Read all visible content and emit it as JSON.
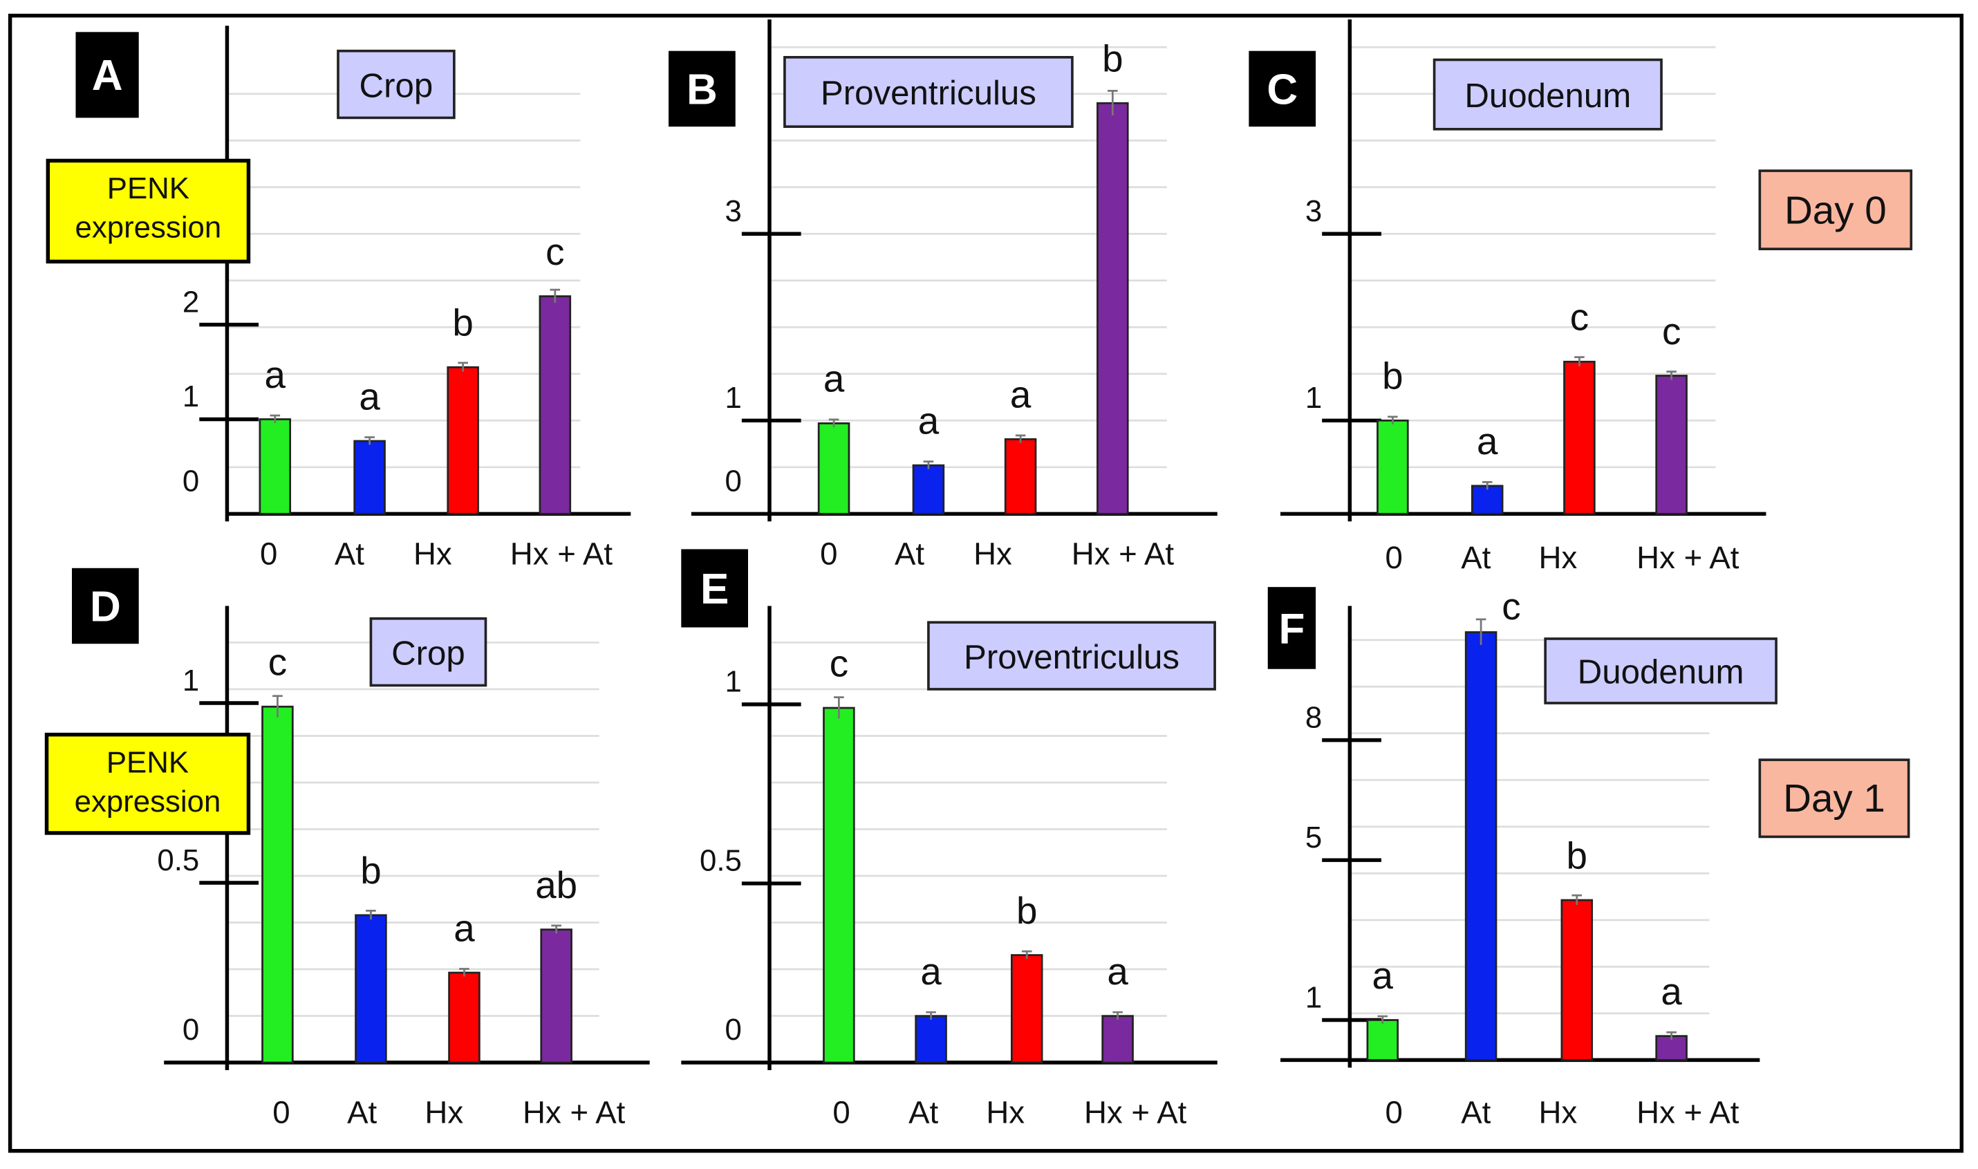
{
  "colors": {
    "bars": [
      "#22ee22",
      "#0a22ee",
      "#ff0000",
      "#7a2a9e"
    ],
    "title_box": "#ccccff",
    "ylabel_box": "#ffff00",
    "day_box": "#f9b7a0",
    "panel_label_bg": "#000000"
  },
  "chart_data": [
    {
      "type": "bar",
      "panel": "A",
      "title": "Crop",
      "ylabel": "PENK expression",
      "day": "Day 0",
      "categories": [
        "0",
        "At",
        "Hx",
        "Hx + At"
      ],
      "values": [
        1.0,
        0.77,
        1.55,
        2.3
      ],
      "letters": [
        "a",
        "a",
        "b",
        "c"
      ],
      "yticks": [
        {
          "v": 0,
          "label": "0"
        },
        {
          "v": 1,
          "label": "1"
        },
        {
          "v": 2,
          "label": "2"
        }
      ],
      "ylim": [
        0,
        5
      ]
    },
    {
      "type": "bar",
      "panel": "B",
      "title": "Proventriculus",
      "categories": [
        "0",
        "At",
        "Hx",
        "Hx + At"
      ],
      "values": [
        0.97,
        0.52,
        0.8,
        4.4
      ],
      "letters": [
        "a",
        "a",
        "a",
        "b"
      ],
      "yticks": [
        {
          "v": 0,
          "label": "0"
        },
        {
          "v": 1,
          "label": "1"
        },
        {
          "v": 3,
          "label": "3"
        }
      ],
      "ylim": [
        0,
        5.2
      ]
    },
    {
      "type": "bar",
      "panel": "C",
      "title": "Duodenum",
      "categories": [
        "0",
        "At",
        "Hx",
        "Hx + At"
      ],
      "values": [
        1.0,
        0.3,
        1.63,
        1.48
      ],
      "letters": [
        "b",
        "a",
        "c",
        "c"
      ],
      "yticks": [
        {
          "v": 1,
          "label": "1"
        },
        {
          "v": 3,
          "label": "3"
        }
      ],
      "ylim": [
        0,
        5.2
      ]
    },
    {
      "type": "bar",
      "panel": "D",
      "title": "Crop",
      "ylabel": "PENK expression",
      "day": "Day 1",
      "categories": [
        "0",
        "At",
        "Hx",
        "Hx + At"
      ],
      "values": [
        0.99,
        0.41,
        0.25,
        0.37
      ],
      "letters": [
        "c",
        "b",
        "a",
        "ab"
      ],
      "yticks": [
        {
          "v": 0,
          "label": "0"
        },
        {
          "v": 0.5,
          "label": "0.5"
        },
        {
          "v": 1,
          "label": "1"
        }
      ],
      "ylim": [
        0,
        1.25
      ]
    },
    {
      "type": "bar",
      "panel": "E",
      "title": "Proventriculus",
      "categories": [
        "0",
        "At",
        "Hx",
        "Hx + At"
      ],
      "values": [
        0.99,
        0.13,
        0.3,
        0.13
      ],
      "letters": [
        "c",
        "a",
        "b",
        "a"
      ],
      "yticks": [
        {
          "v": 0,
          "label": "0"
        },
        {
          "v": 0.5,
          "label": "0.5"
        },
        {
          "v": 1,
          "label": "1"
        }
      ],
      "ylim": [
        0,
        1.27
      ]
    },
    {
      "type": "bar",
      "panel": "F",
      "title": "Duodenum",
      "categories": [
        "0",
        "At",
        "Hx",
        "Hx + At"
      ],
      "values": [
        1.0,
        10.7,
        4.0,
        0.6
      ],
      "letters": [
        "a",
        "c",
        "b",
        "a"
      ],
      "yticks": [
        {
          "v": 1,
          "label": "1"
        },
        {
          "v": 5,
          "label": "5"
        },
        {
          "v": 8,
          "label": "8"
        }
      ],
      "ylim": [
        0,
        11.5
      ]
    }
  ]
}
